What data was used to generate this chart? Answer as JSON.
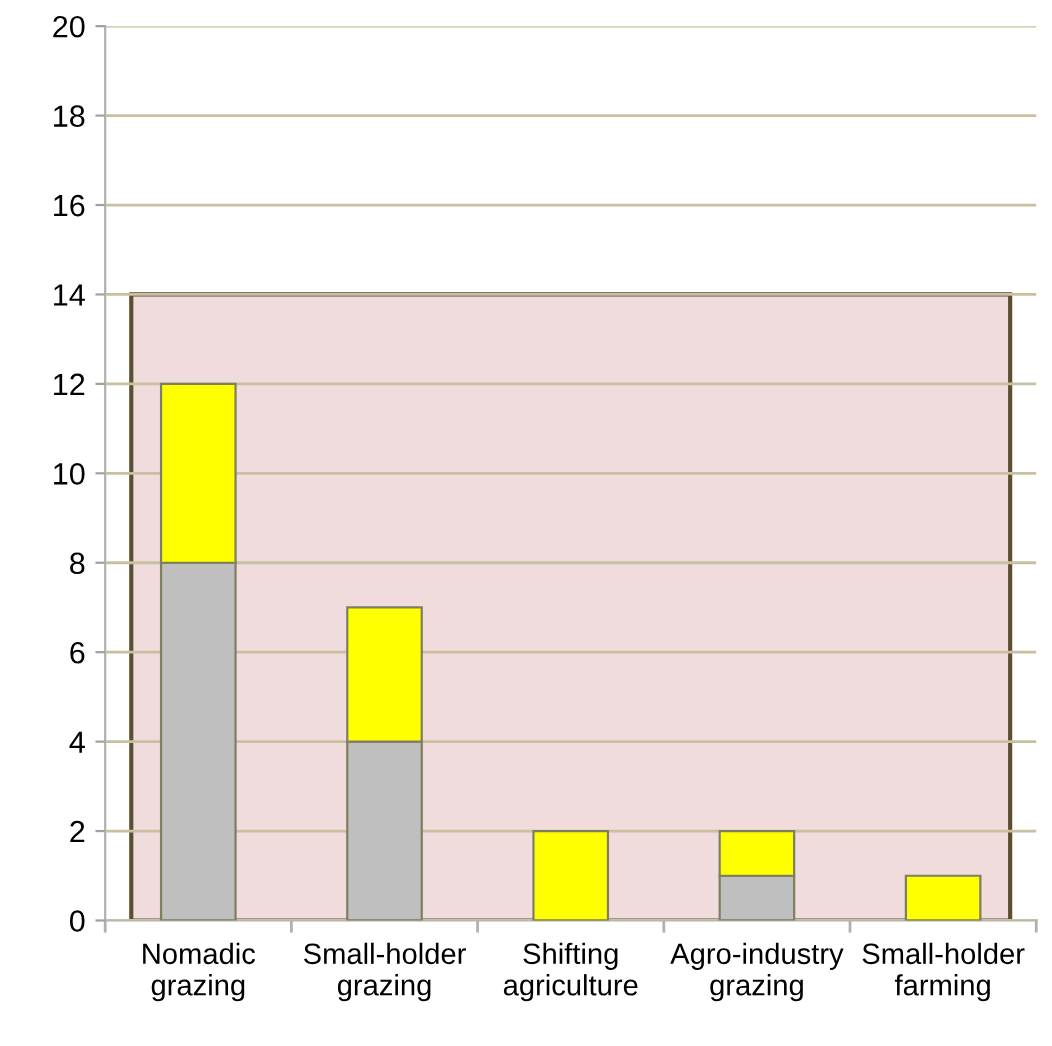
{
  "chart_data": {
    "type": "bar",
    "stacked": true,
    "categories": [
      "Nomadic\ngrazing",
      "Small-holder\ngrazing",
      "Shifting\nagriculture",
      "Agro-industry\ngrazing",
      "Small-holder\nfarming"
    ],
    "series": [
      {
        "color": "#bfbfbf",
        "values": [
          8,
          4,
          0,
          1,
          0
        ]
      },
      {
        "color": "#ffff00",
        "values": [
          4,
          3,
          2,
          1,
          1
        ]
      }
    ],
    "ylim": [
      0,
      20
    ],
    "yticks": [
      0,
      2,
      4,
      6,
      8,
      10,
      12,
      14,
      16,
      18,
      20
    ],
    "grid": "y",
    "bands": [
      {
        "axis": "y",
        "from": 0,
        "to": 14,
        "color": "#f0dcdc"
      }
    ]
  }
}
